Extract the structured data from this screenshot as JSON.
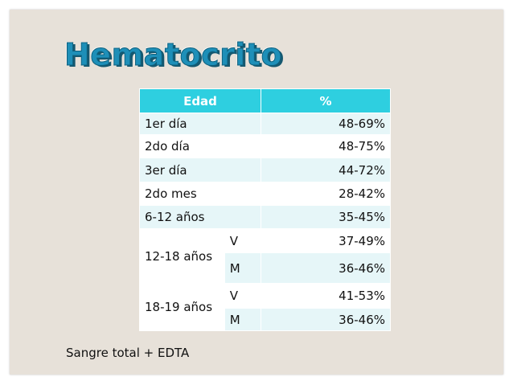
{
  "title": "Hematocrito",
  "table": {
    "headers": [
      "Edad",
      "%"
    ],
    "rows": [
      {
        "age": "1er día",
        "value": "48-69%"
      },
      {
        "age": "2do día",
        "value": "48-75%"
      },
      {
        "age": "3er día",
        "value": "44-72%"
      },
      {
        "age": "2do mes",
        "value": "28-42%"
      },
      {
        "age": "6-12 años",
        "value": "35-45%"
      }
    ],
    "groups": [
      {
        "age": "12-18 años",
        "rows": [
          {
            "sex": "V",
            "value": "37-49%"
          },
          {
            "sex": "M",
            "value": "36-46%"
          }
        ]
      },
      {
        "age": "18-19 años",
        "rows": [
          {
            "sex": "V",
            "value": "41-53%"
          },
          {
            "sex": "M",
            "value": "36-46%"
          }
        ]
      }
    ]
  },
  "footnote": "Sangre total + EDTA"
}
